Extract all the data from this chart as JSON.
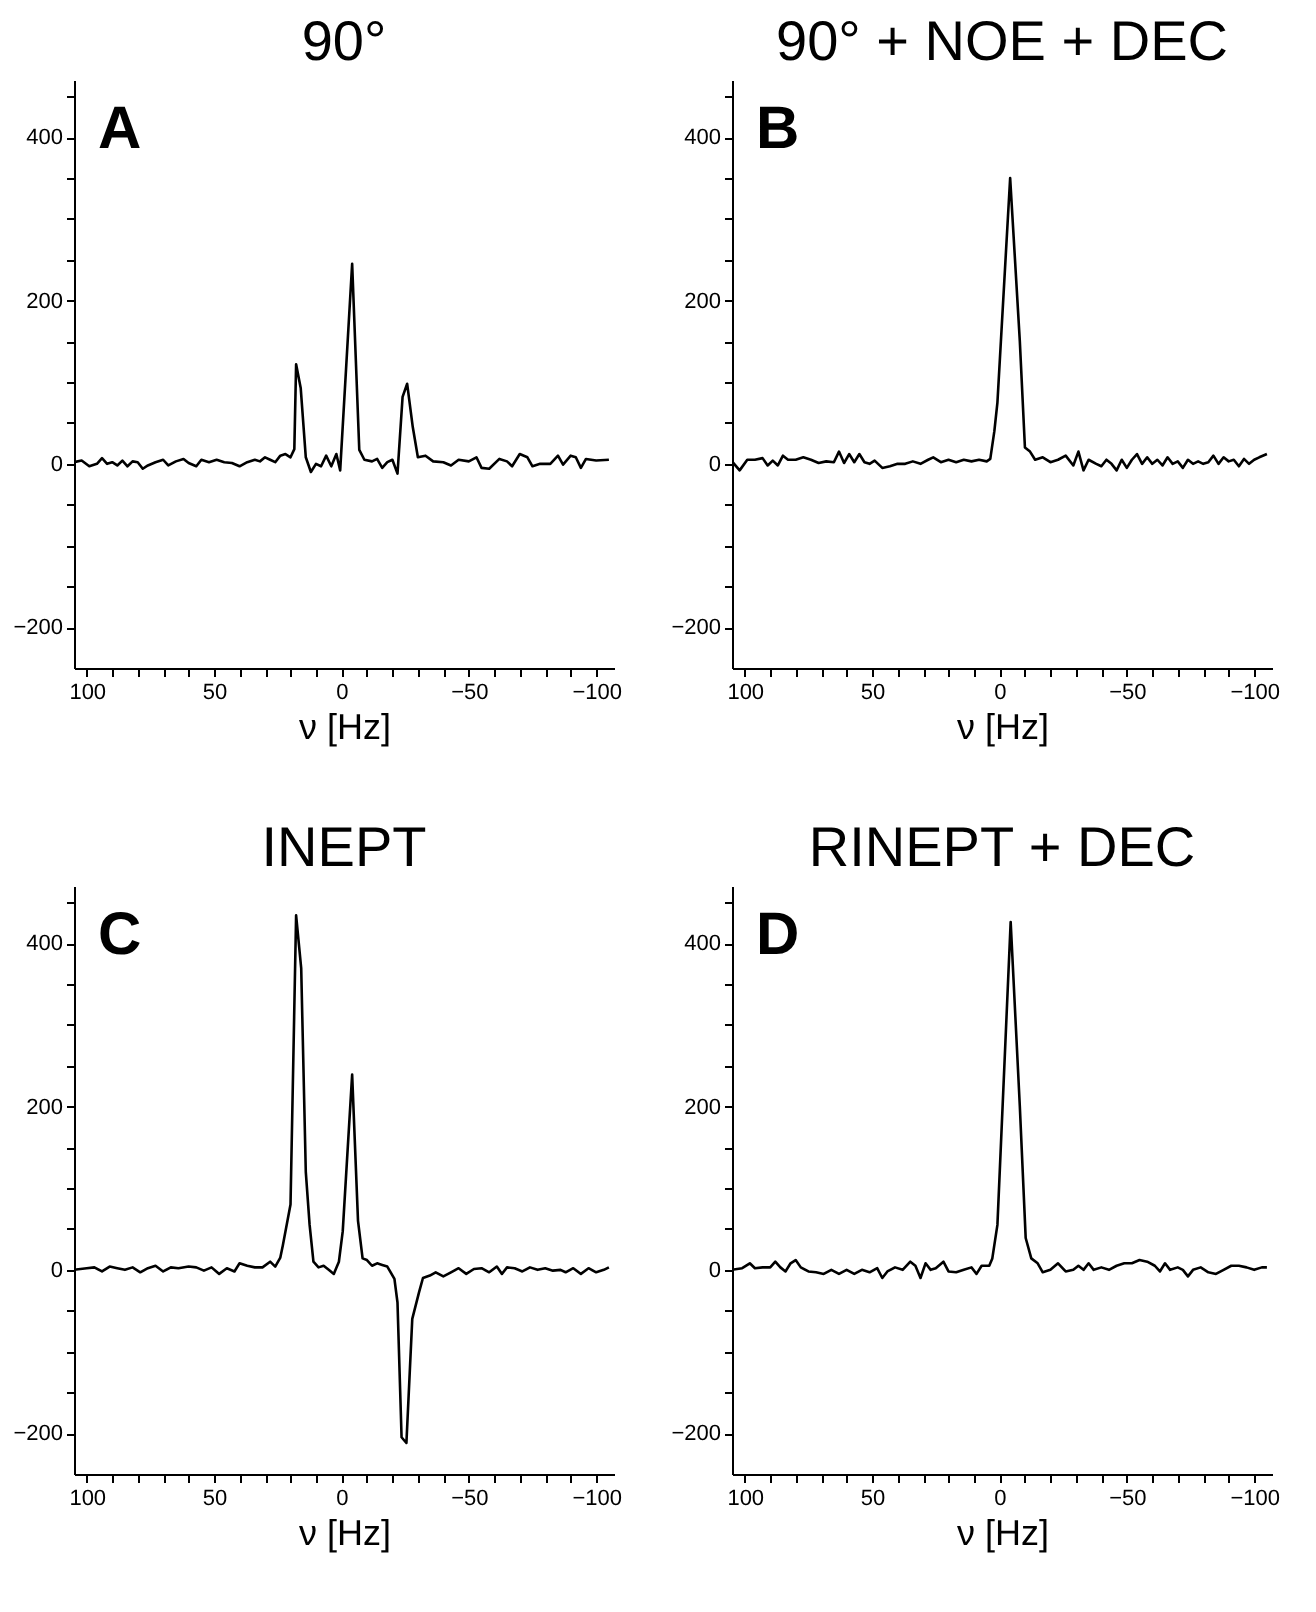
{
  "chart_data": [
    {
      "type": "line",
      "line_style": "solid",
      "title": "90°",
      "xlabel": "ν [Hz]",
      "annotations": [
        "A"
      ],
      "color": "#000000",
      "xlim": [
        105,
        -107
      ],
      "ylim": [
        -250,
        470
      ],
      "xticks": [
        100,
        {
          "value": 90,
          "label": null
        },
        {
          "value": 80,
          "label": null
        },
        {
          "value": 70,
          "label": null
        },
        {
          "value": 60,
          "label": null
        },
        50,
        {
          "value": 40,
          "label": null
        },
        {
          "value": 30,
          "label": null
        },
        {
          "value": 20,
          "label": null
        },
        {
          "value": 10,
          "label": null
        },
        0,
        {
          "value": -10,
          "label": null
        },
        {
          "value": -20,
          "label": null
        },
        {
          "value": -30,
          "label": null
        },
        {
          "value": -40,
          "label": null
        },
        -50,
        {
          "value": -60,
          "label": null
        },
        {
          "value": -70,
          "label": null
        },
        {
          "value": -80,
          "label": null
        },
        {
          "value": -90,
          "label": null
        },
        -100
      ],
      "yticks": [
        -200,
        {
          "value": -150,
          "label": null
        },
        {
          "value": -100,
          "label": null
        },
        {
          "value": -50,
          "label": null
        },
        0,
        {
          "value": 50,
          "label": null
        },
        {
          "value": 100,
          "label": null
        },
        {
          "value": 150,
          "label": null
        },
        200,
        {
          "value": 250,
          "label": null
        },
        {
          "value": 300,
          "label": null
        },
        {
          "value": 350,
          "label": null
        },
        400,
        {
          "value": 450,
          "label": null
        }
      ],
      "x": [
        105,
        102,
        99,
        96,
        94,
        92,
        90,
        88,
        86,
        84,
        82,
        80,
        78,
        76,
        73,
        70,
        68,
        65,
        62,
        60,
        57,
        55,
        52,
        49,
        46,
        43,
        40,
        37,
        34,
        32,
        30,
        28,
        26,
        24,
        22,
        20,
        18.5,
        17.8,
        16,
        14,
        12,
        10,
        8,
        6,
        4,
        2,
        0.5,
        -4.2,
        -7,
        -9,
        -12,
        -14,
        -16,
        -18,
        -20,
        -22,
        -24,
        -25.8,
        -28,
        -30,
        -33,
        -36,
        -40,
        -43,
        -46,
        -50,
        -53,
        -55,
        -58,
        -62,
        -65,
        -67,
        -70,
        -73,
        -75,
        -78,
        -82,
        -85,
        -87,
        -90,
        -92,
        -94,
        -96,
        -100,
        -105
      ],
      "values": [
        2,
        4,
        -3,
        0,
        7,
        0,
        2,
        -2,
        4,
        -3,
        3,
        2,
        -6,
        -2,
        2,
        5,
        -2,
        3,
        6,
        1,
        -3,
        5,
        2,
        5,
        2,
        1,
        -3,
        2,
        5,
        3,
        8,
        5,
        2,
        10,
        12,
        8,
        18,
        122,
        93,
        8,
        -10,
        0,
        -3,
        10,
        -3,
        12,
        -8,
        245,
        17,
        5,
        3,
        6,
        -5,
        2,
        5,
        -12,
        82,
        98,
        45,
        8,
        10,
        3,
        2,
        -2,
        5,
        3,
        8,
        -5,
        -6,
        6,
        3,
        -3,
        12,
        8,
        -3,
        0,
        0,
        10,
        -1,
        10,
        8,
        -5,
        6,
        4,
        5
      ]
    },
    {
      "type": "line",
      "line_style": "solid",
      "title": "90° + NOE + DEC",
      "xlabel": "ν [Hz]",
      "annotations": [
        "B"
      ],
      "color": "#000000",
      "xlim": [
        105,
        -107
      ],
      "ylim": [
        -250,
        470
      ],
      "xticks": [
        100,
        {
          "value": 90,
          "label": null
        },
        {
          "value": 80,
          "label": null
        },
        {
          "value": 70,
          "label": null
        },
        {
          "value": 60,
          "label": null
        },
        50,
        {
          "value": 40,
          "label": null
        },
        {
          "value": 30,
          "label": null
        },
        {
          "value": 20,
          "label": null
        },
        {
          "value": 10,
          "label": null
        },
        0,
        {
          "value": -10,
          "label": null
        },
        {
          "value": -20,
          "label": null
        },
        {
          "value": -30,
          "label": null
        },
        {
          "value": -40,
          "label": null
        },
        -50,
        {
          "value": -60,
          "label": null
        },
        {
          "value": -70,
          "label": null
        },
        {
          "value": -80,
          "label": null
        },
        {
          "value": -90,
          "label": null
        },
        -100
      ],
      "yticks": [
        -200,
        {
          "value": -150,
          "label": null
        },
        {
          "value": -100,
          "label": null
        },
        {
          "value": -50,
          "label": null
        },
        0,
        {
          "value": 50,
          "label": null
        },
        {
          "value": 100,
          "label": null
        },
        {
          "value": 150,
          "label": null
        },
        200,
        {
          "value": 250,
          "label": null
        },
        {
          "value": 300,
          "label": null
        },
        {
          "value": 350,
          "label": null
        },
        400,
        {
          "value": 450,
          "label": null
        }
      ],
      "x": [
        105,
        102,
        99,
        96,
        93,
        91,
        89,
        87,
        85,
        83,
        80,
        77,
        74,
        71,
        68,
        65,
        63,
        61,
        59,
        57,
        55,
        53,
        51,
        49,
        46,
        43,
        40,
        37,
        34,
        31,
        28,
        26,
        23,
        20,
        17,
        14,
        11,
        8,
        5,
        3.6,
        2,
        0.8,
        -4.2,
        -8,
        -10,
        -12,
        -14,
        -17,
        -20,
        -23,
        -26,
        -29,
        -31,
        -33,
        -35,
        -38,
        -40,
        -42,
        -44,
        -46,
        -48,
        -50,
        -52,
        -54,
        -56,
        -58,
        -60,
        -62,
        -64,
        -66,
        -68,
        -70,
        -72,
        -74,
        -76,
        -78,
        -80,
        -82,
        -84,
        -86,
        -88,
        -90,
        -92,
        -94,
        -96,
        -98,
        -100,
        -102,
        -105
      ],
      "values": [
        3,
        -8,
        5,
        5,
        7,
        -2,
        4,
        -2,
        10,
        5,
        5,
        8,
        5,
        1,
        3,
        2,
        15,
        1,
        12,
        2,
        12,
        2,
        0,
        4,
        -5,
        -3,
        0,
        0,
        3,
        0,
        5,
        8,
        2,
        5,
        2,
        5,
        3,
        5,
        3,
        6,
        40,
        75,
        350,
        150,
        20,
        15,
        5,
        8,
        2,
        5,
        10,
        -2,
        15,
        -8,
        5,
        0,
        -3,
        5,
        0,
        -8,
        5,
        -5,
        5,
        12,
        0,
        8,
        0,
        5,
        -2,
        8,
        0,
        3,
        -5,
        5,
        0,
        3,
        0,
        2,
        10,
        0,
        8,
        3,
        5,
        -3,
        6,
        0,
        5,
        8,
        12
      ]
    },
    {
      "type": "line",
      "line_style": "solid",
      "title": "INEPT",
      "xlabel": "ν [Hz]",
      "annotations": [
        "C"
      ],
      "color": "#000000",
      "xlim": [
        105,
        -107
      ],
      "ylim": [
        -250,
        470
      ],
      "xticks": [
        100,
        {
          "value": 90,
          "label": null
        },
        {
          "value": 80,
          "label": null
        },
        {
          "value": 70,
          "label": null
        },
        {
          "value": 60,
          "label": null
        },
        50,
        {
          "value": 40,
          "label": null
        },
        {
          "value": 30,
          "label": null
        },
        {
          "value": 20,
          "label": null
        },
        {
          "value": 10,
          "label": null
        },
        0,
        {
          "value": -10,
          "label": null
        },
        {
          "value": -20,
          "label": null
        },
        {
          "value": -30,
          "label": null
        },
        {
          "value": -40,
          "label": null
        },
        -50,
        {
          "value": -60,
          "label": null
        },
        {
          "value": -70,
          "label": null
        },
        {
          "value": -80,
          "label": null
        },
        {
          "value": -90,
          "label": null
        },
        -100
      ],
      "yticks": [
        -200,
        {
          "value": -150,
          "label": null
        },
        {
          "value": -100,
          "label": null
        },
        {
          "value": -50,
          "label": null
        },
        0,
        {
          "value": 50,
          "label": null
        },
        {
          "value": 100,
          "label": null
        },
        {
          "value": 150,
          "label": null
        },
        200,
        {
          "value": 250,
          "label": null
        },
        {
          "value": 300,
          "label": null
        },
        {
          "value": 350,
          "label": null
        },
        400,
        {
          "value": 450,
          "label": null
        }
      ],
      "x": [
        105,
        100,
        97,
        94,
        91,
        88,
        85,
        82,
        79,
        76,
        73,
        70,
        67,
        64,
        60,
        57,
        54,
        51,
        48,
        45,
        42,
        40,
        37,
        34,
        31,
        28,
        26,
        24,
        23,
        20,
        17.8,
        15.8,
        14,
        12.5,
        11,
        9,
        7,
        5,
        3,
        1,
        -0.5,
        -4.2,
        -6.5,
        -8.3,
        -10,
        -12,
        -14,
        -16,
        -18,
        -20.8,
        -22,
        -23.6,
        -25.5,
        -27.8,
        -30.5,
        -32,
        -34.7,
        -37,
        -40,
        -43,
        -46,
        -49,
        -52,
        -55,
        -58,
        -61,
        -63,
        -65,
        -68,
        -71,
        -74,
        -77,
        -80,
        -83,
        -86,
        -88,
        -91,
        -94,
        -97,
        -100,
        -103,
        -105
      ],
      "values": [
        0,
        2,
        3,
        -2,
        4,
        2,
        0,
        3,
        -3,
        2,
        5,
        -2,
        3,
        2,
        4,
        3,
        -1,
        3,
        -5,
        2,
        -2,
        8,
        5,
        3,
        3,
        10,
        4,
        15,
        30,
        80,
        434,
        369,
        120,
        55,
        10,
        3,
        5,
        0,
        -5,
        10,
        47,
        239,
        60,
        14,
        12,
        5,
        8,
        6,
        4,
        -11,
        -40,
        -205,
        -212,
        -60,
        -27,
        -10,
        -7,
        -3,
        -8,
        -3,
        2,
        -5,
        1,
        2,
        -3,
        4,
        -5,
        3,
        2,
        -2,
        3,
        0,
        2,
        -1,
        0,
        -3,
        2,
        -5,
        2,
        -3,
        0,
        3
      ]
    },
    {
      "type": "line",
      "line_style": "solid",
      "title": "RINEPT + DEC",
      "xlabel": "ν [Hz]",
      "annotations": [
        "D"
      ],
      "color": "#000000",
      "xlim": [
        105,
        -107
      ],
      "ylim": [
        -250,
        470
      ],
      "xticks": [
        100,
        {
          "value": 90,
          "label": null
        },
        {
          "value": 80,
          "label": null
        },
        {
          "value": 70,
          "label": null
        },
        {
          "value": 60,
          "label": null
        },
        50,
        {
          "value": 40,
          "label": null
        },
        {
          "value": 30,
          "label": null
        },
        {
          "value": 20,
          "label": null
        },
        {
          "value": 10,
          "label": null
        },
        0,
        {
          "value": -10,
          "label": null
        },
        {
          "value": -20,
          "label": null
        },
        {
          "value": -30,
          "label": null
        },
        {
          "value": -40,
          "label": null
        },
        -50,
        {
          "value": -60,
          "label": null
        },
        {
          "value": -70,
          "label": null
        },
        {
          "value": -80,
          "label": null
        },
        {
          "value": -90,
          "label": null
        },
        -100
      ],
      "yticks": [
        -200,
        {
          "value": -150,
          "label": null
        },
        {
          "value": -100,
          "label": null
        },
        {
          "value": -50,
          "label": null
        },
        0,
        {
          "value": 50,
          "label": null
        },
        {
          "value": 100,
          "label": null
        },
        {
          "value": 150,
          "label": null
        },
        200,
        {
          "value": 250,
          "label": null
        },
        {
          "value": 300,
          "label": null
        },
        {
          "value": 350,
          "label": null
        },
        400,
        {
          "value": 450,
          "label": null
        }
      ],
      "x": [
        105,
        101,
        98,
        96,
        93,
        90,
        88,
        86,
        84,
        82,
        80,
        78,
        75,
        72,
        69,
        66,
        63,
        60,
        57,
        54,
        51,
        48,
        46,
        44,
        41,
        38,
        35,
        33,
        31,
        29,
        27,
        25,
        22,
        20,
        17,
        14,
        11,
        9,
        7,
        4,
        2.8,
        0.8,
        -4.4,
        -8,
        -10.3,
        -12.5,
        -15,
        -17,
        -20,
        -23,
        -26,
        -29,
        -31,
        -33,
        -35,
        -37,
        -40,
        -43,
        -46,
        -49,
        -52,
        -55,
        -58,
        -61,
        -63,
        -65,
        -67,
        -70,
        -72,
        -74,
        -76,
        -79,
        -82,
        -85,
        -88,
        -91,
        -94,
        -97,
        -100,
        -103,
        -105
      ],
      "values": [
        0,
        2,
        8,
        2,
        3,
        3,
        10,
        3,
        -2,
        8,
        12,
        3,
        -2,
        -3,
        -5,
        0,
        -5,
        0,
        -5,
        0,
        -3,
        2,
        -10,
        -2,
        3,
        0,
        10,
        5,
        -10,
        8,
        0,
        2,
        10,
        -2,
        -3,
        0,
        3,
        -5,
        5,
        5,
        14,
        55,
        426,
        200,
        39,
        14,
        8,
        -3,
        0,
        8,
        -2,
        0,
        5,
        0,
        8,
        0,
        3,
        0,
        5,
        8,
        8,
        12,
        10,
        5,
        -2,
        8,
        0,
        3,
        0,
        -8,
        0,
        3,
        -3,
        -5,
        0,
        5,
        5,
        3,
        0,
        3,
        3
      ]
    }
  ]
}
